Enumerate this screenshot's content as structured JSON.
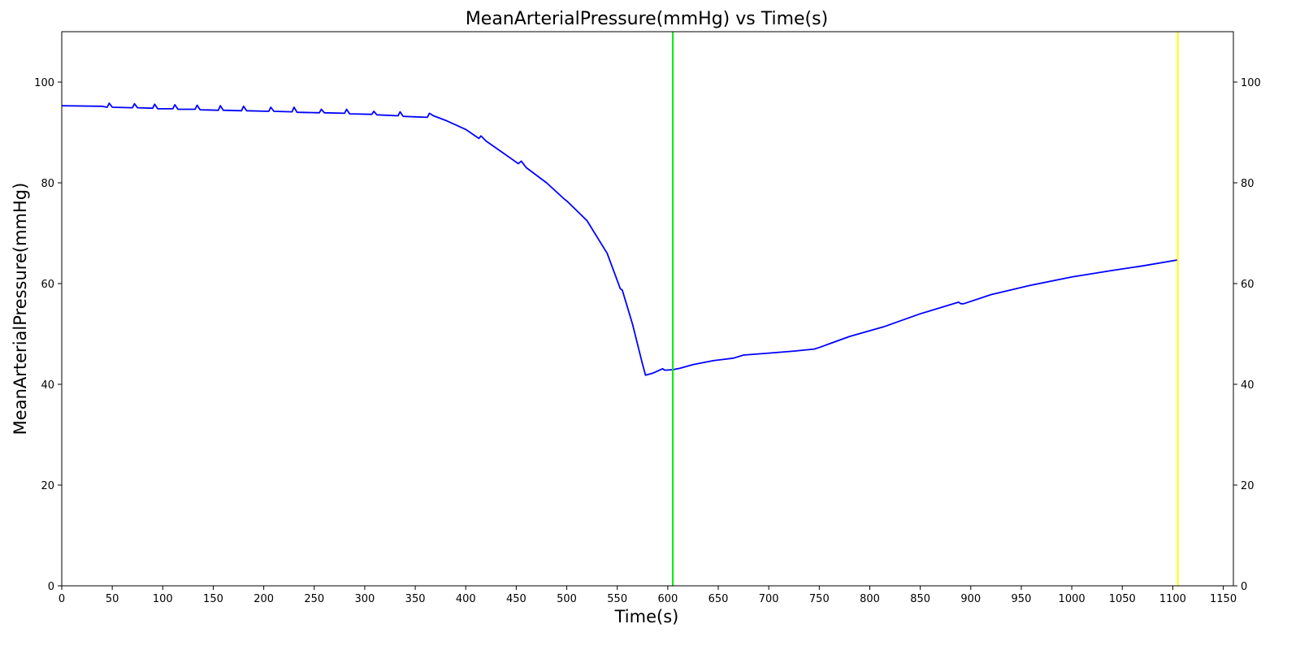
{
  "chart_data": {
    "type": "line",
    "title": "MeanArterialPressure(mmHg) vs Time(s)",
    "xlabel": "Time(s)",
    "ylabel": "MeanArterialPressure(mmHg)",
    "xlim": [
      0,
      1160
    ],
    "ylim": [
      0,
      110
    ],
    "x_ticks": [
      0,
      50,
      100,
      150,
      200,
      250,
      300,
      350,
      400,
      450,
      500,
      550,
      600,
      650,
      700,
      750,
      800,
      850,
      900,
      950,
      1000,
      1050,
      1100,
      1150
    ],
    "y_ticks": [
      0,
      20,
      40,
      60,
      80,
      100
    ],
    "right_y_axis_mirrored": true,
    "grid": false,
    "legend": "none",
    "series": [
      {
        "color": "#0000ff",
        "points": [
          [
            0,
            95.3
          ],
          [
            40,
            95.2
          ],
          [
            45,
            95.0
          ],
          [
            47,
            95.8
          ],
          [
            50,
            95.0
          ],
          [
            70,
            94.9
          ],
          [
            72,
            95.7
          ],
          [
            75,
            94.9
          ],
          [
            90,
            94.8
          ],
          [
            92,
            95.6
          ],
          [
            95,
            94.7
          ],
          [
            110,
            94.7
          ],
          [
            112,
            95.5
          ],
          [
            115,
            94.6
          ],
          [
            132,
            94.6
          ],
          [
            134,
            95.4
          ],
          [
            137,
            94.5
          ],
          [
            155,
            94.4
          ],
          [
            157,
            95.3
          ],
          [
            160,
            94.4
          ],
          [
            178,
            94.3
          ],
          [
            180,
            95.2
          ],
          [
            183,
            94.3
          ],
          [
            205,
            94.2
          ],
          [
            207,
            95.0
          ],
          [
            210,
            94.2
          ],
          [
            228,
            94.1
          ],
          [
            230,
            95.0
          ],
          [
            233,
            94.0
          ],
          [
            255,
            93.9
          ],
          [
            257,
            94.6
          ],
          [
            260,
            93.9
          ],
          [
            280,
            93.8
          ],
          [
            282,
            94.6
          ],
          [
            285,
            93.7
          ],
          [
            307,
            93.6
          ],
          [
            309,
            94.2
          ],
          [
            312,
            93.5
          ],
          [
            333,
            93.3
          ],
          [
            335,
            94.1
          ],
          [
            338,
            93.2
          ],
          [
            362,
            93.0
          ],
          [
            364,
            93.8
          ],
          [
            368,
            93.3
          ],
          [
            380,
            92.4
          ],
          [
            400,
            90.6
          ],
          [
            413,
            88.8
          ],
          [
            415,
            89.3
          ],
          [
            420,
            88.3
          ],
          [
            440,
            85.5
          ],
          [
            452,
            83.8
          ],
          [
            455,
            84.3
          ],
          [
            460,
            83.0
          ],
          [
            480,
            80.0
          ],
          [
            498,
            76.7
          ],
          [
            500,
            76.4
          ],
          [
            520,
            72.5
          ],
          [
            540,
            66.0
          ],
          [
            553,
            59.0
          ],
          [
            555,
            58.7
          ],
          [
            565,
            52.0
          ],
          [
            575,
            44.0
          ],
          [
            578,
            41.8
          ],
          [
            585,
            42.2
          ],
          [
            595,
            43.1
          ],
          [
            597,
            42.8
          ],
          [
            605,
            42.9
          ],
          [
            612,
            43.2
          ],
          [
            625,
            43.9
          ],
          [
            645,
            44.7
          ],
          [
            665,
            45.2
          ],
          [
            675,
            45.8
          ],
          [
            700,
            46.2
          ],
          [
            725,
            46.6
          ],
          [
            745,
            47.0
          ],
          [
            750,
            47.3
          ],
          [
            780,
            49.5
          ],
          [
            815,
            51.5
          ],
          [
            850,
            54.0
          ],
          [
            888,
            56.3
          ],
          [
            890,
            56.0
          ],
          [
            893,
            56.0
          ],
          [
            920,
            57.8
          ],
          [
            960,
            59.7
          ],
          [
            1000,
            61.3
          ],
          [
            1040,
            62.6
          ],
          [
            1070,
            63.5
          ],
          [
            1105,
            64.7
          ]
        ]
      }
    ],
    "markers": [
      {
        "x": 605,
        "color": "#00ee00"
      },
      {
        "x": 1105,
        "color": "#ffff00"
      }
    ]
  }
}
